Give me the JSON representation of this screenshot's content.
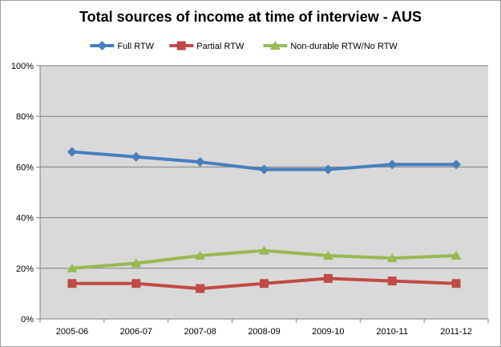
{
  "chart_data": {
    "type": "line",
    "title": "Total sources of income at time of interview - AUS",
    "xlabel": "",
    "ylabel": "",
    "categories": [
      "2005-06",
      "2006-07",
      "2007-08",
      "2008-09",
      "2009-10",
      "2010-11",
      "2011-12"
    ],
    "ylim": [
      0,
      100
    ],
    "yticks": [
      "0%",
      "20%",
      "40%",
      "60%",
      "80%",
      "100%"
    ],
    "grid": true,
    "legend_position": "top",
    "series": [
      {
        "name": "Full RTW",
        "color": "#4a7ebb",
        "marker": "diamond",
        "values": [
          66,
          64,
          62,
          59,
          59,
          61,
          61
        ]
      },
      {
        "name": "Partial RTW",
        "color": "#be4b48",
        "marker": "square",
        "values": [
          14,
          14,
          12,
          14,
          16,
          15,
          14
        ]
      },
      {
        "name": "Non-durable RTW/No RTW",
        "color": "#98b954",
        "marker": "triangle",
        "values": [
          20,
          22,
          25,
          27,
          25,
          24,
          25
        ]
      }
    ]
  }
}
